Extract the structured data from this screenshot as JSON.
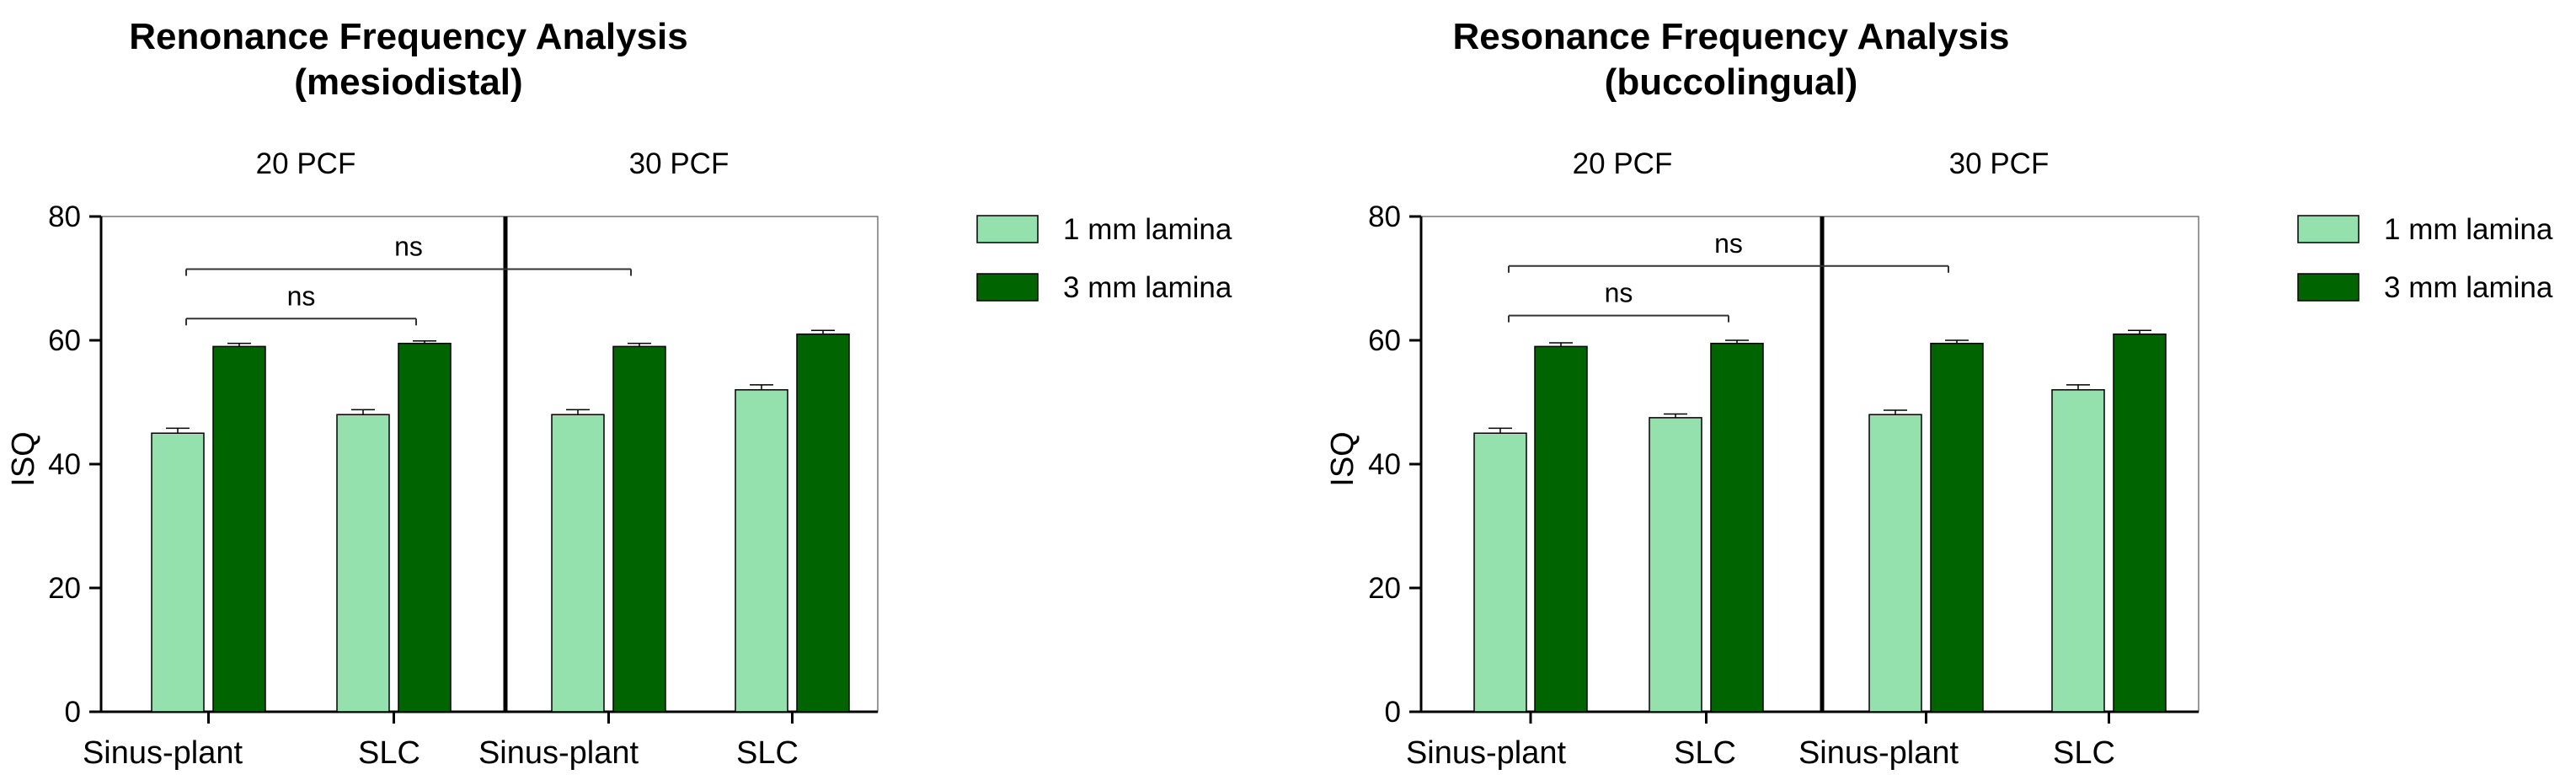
{
  "colors": {
    "light": "#94E1AD",
    "dark": "#006400",
    "axis": "#000000"
  },
  "chart_data": [
    {
      "type": "bar",
      "title": [
        "Renonance Frequency Analysis",
        "(mesiodistal)"
      ],
      "groups": [
        "20 PCF",
        "30 PCF"
      ],
      "categories": [
        "Sinus-plant",
        "SLC",
        "Sinus-plant",
        "SLC"
      ],
      "ylabel": "ISQ",
      "ylim": [
        0,
        80
      ],
      "yticks": [
        "0",
        "20",
        "40",
        "60",
        "80"
      ],
      "series": [
        {
          "name": "1 mm lamina",
          "values": [
            45,
            48,
            48,
            52
          ],
          "errors": [
            0.8,
            0.8,
            0.8,
            0.8
          ]
        },
        {
          "name": "3 mm lamina",
          "values": [
            59,
            59.5,
            59,
            61
          ],
          "errors": [
            0.5,
            0.4,
            0.5,
            0.6
          ]
        }
      ],
      "annotations": [
        {
          "text": "ns",
          "from": 0,
          "to": 2,
          "y": 71.5
        },
        {
          "text": "ns",
          "from": 0,
          "to": 1,
          "y": 63.5
        }
      ]
    },
    {
      "type": "bar",
      "title": [
        "Resonance Frequency Analysis",
        "(buccolingual)"
      ],
      "groups": [
        "20 PCF",
        "30 PCF"
      ],
      "categories": [
        "Sinus-plant",
        "SLC",
        "Sinus-plant",
        "SLC"
      ],
      "ylabel": "ISQ",
      "ylim": [
        0,
        80
      ],
      "yticks": [
        "0",
        "20",
        "40",
        "60",
        "80"
      ],
      "series": [
        {
          "name": "1 mm lamina",
          "values": [
            45,
            47.5,
            48,
            52
          ],
          "errors": [
            0.8,
            0.6,
            0.7,
            0.8
          ]
        },
        {
          "name": "3 mm lamina",
          "values": [
            59,
            59.5,
            59.5,
            61
          ],
          "errors": [
            0.6,
            0.5,
            0.5,
            0.6
          ]
        }
      ],
      "annotations": [
        {
          "text": "ns",
          "from": 0,
          "to": 2,
          "y": 72
        },
        {
          "text": "ns",
          "from": 0,
          "to": 1,
          "y": 64
        }
      ]
    }
  ]
}
